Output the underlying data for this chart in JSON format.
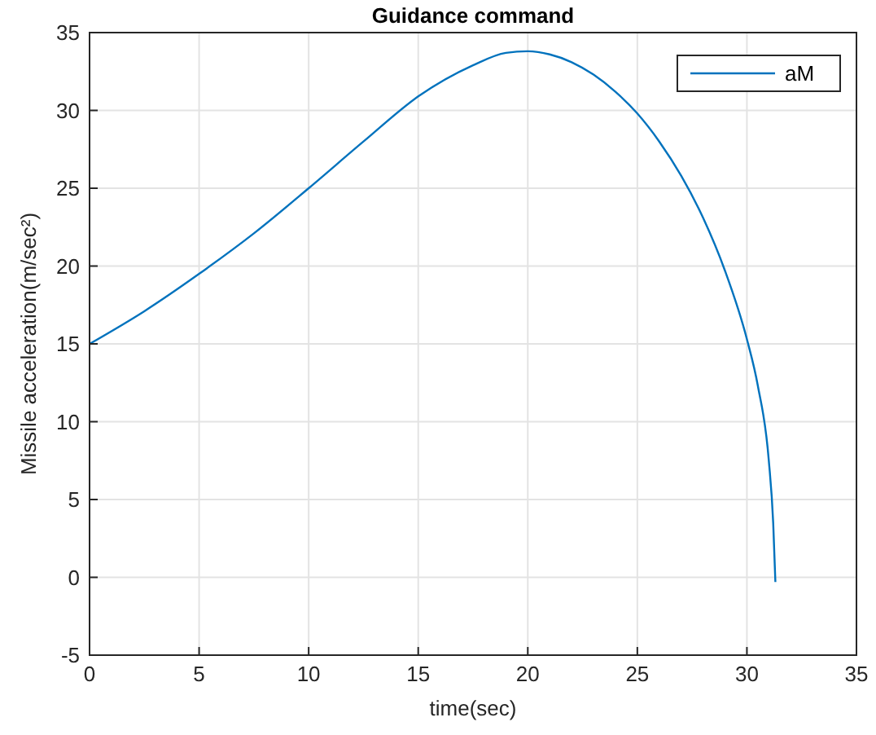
{
  "chart_data": {
    "type": "line",
    "title": "Guidance command",
    "xlabel": "time(sec)",
    "ylabel": "Missile acceleration(m/sec²)",
    "xlim": [
      0,
      35
    ],
    "xticks": [
      0,
      5,
      10,
      15,
      20,
      25,
      30,
      35
    ],
    "ylim": [
      -5,
      35
    ],
    "yticks": [
      -5,
      0,
      5,
      10,
      15,
      20,
      25,
      30,
      35
    ],
    "grid": true,
    "legend": "top right",
    "series": [
      {
        "name": "aM",
        "color": "#0072bd",
        "x": [
          0,
          2.5,
          5,
          7.5,
          10,
          12.5,
          15,
          17.5,
          19,
          20,
          21,
          22,
          23,
          24,
          25,
          26,
          27,
          28,
          29,
          30,
          30.5,
          31,
          31.2,
          31.3
        ],
        "values": [
          15,
          17.1,
          19.5,
          22.1,
          25,
          28,
          30.9,
          32.9,
          33.7,
          33.8,
          33.6,
          33.1,
          32.3,
          31.2,
          29.8,
          28,
          25.8,
          23.1,
          19.7,
          15.3,
          12.3,
          7.5,
          3.5,
          -0.3
        ]
      }
    ]
  }
}
